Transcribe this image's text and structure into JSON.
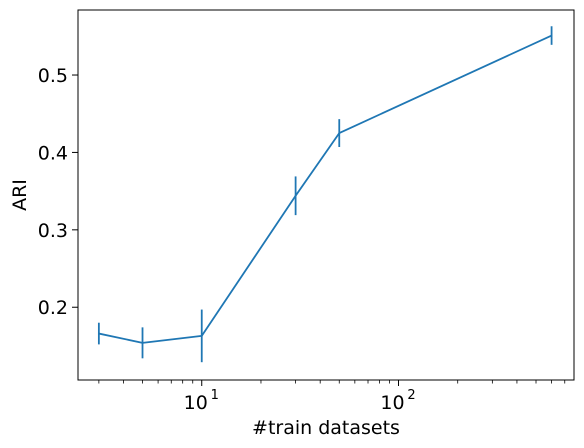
{
  "chart_data": {
    "type": "line",
    "title": "",
    "xlabel": "#train datasets",
    "ylabel": "ARI",
    "xscale": "log",
    "xlim": [
      2.35,
      780
    ],
    "ylim": [
      0.106,
      0.584
    ],
    "grid": false,
    "x_ticks": [
      {
        "base": "10",
        "exp": "1",
        "value": 10
      },
      {
        "base": "10",
        "exp": "2",
        "value": 100
      }
    ],
    "y_ticks": [
      {
        "label": "0.2",
        "value": 0.2
      },
      {
        "label": "0.3",
        "value": 0.3
      },
      {
        "label": "0.4",
        "value": 0.4
      },
      {
        "label": "0.5",
        "value": 0.5
      }
    ],
    "series": [
      {
        "color": "#1f77b4",
        "x": [
          3,
          5,
          10,
          30,
          50,
          600
        ],
        "y": [
          0.166,
          0.154,
          0.163,
          0.344,
          0.425,
          0.551
        ],
        "err": [
          0.014,
          0.02,
          0.034,
          0.025,
          0.018,
          0.012
        ]
      }
    ]
  }
}
